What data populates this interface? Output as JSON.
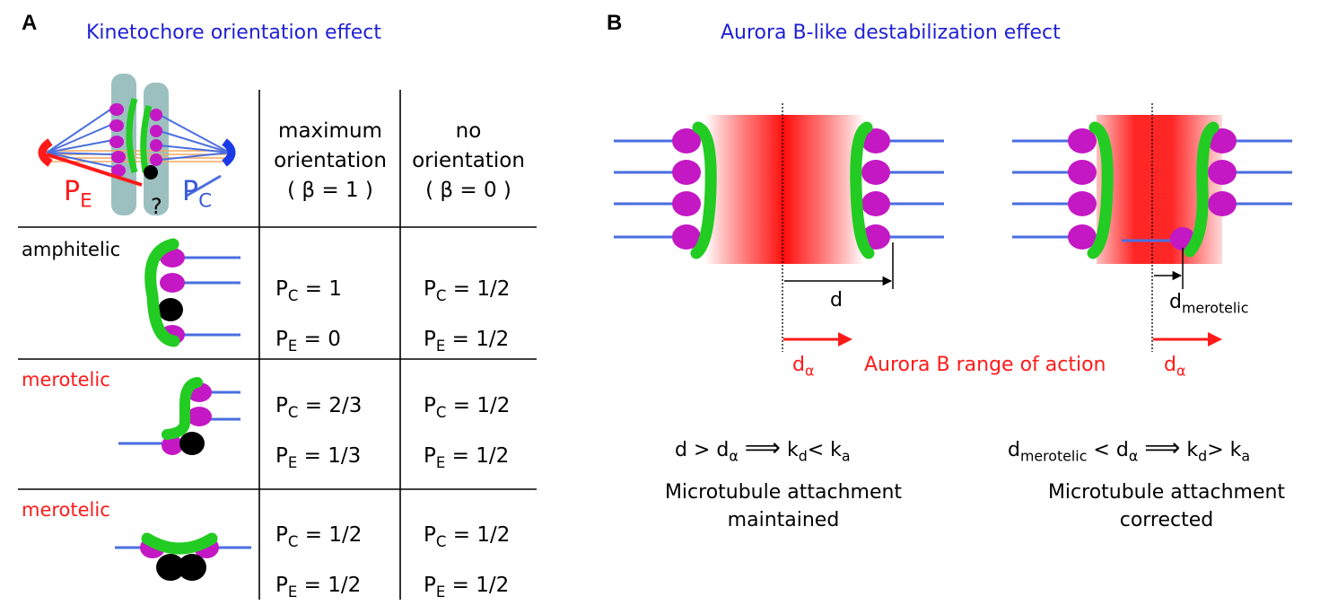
{
  "panel_a": {
    "label": "A",
    "title": "Kinetochore orientation effect",
    "spindle_labels": {
      "pe_main": "P",
      "pe_sub": "E",
      "pc_main": "P",
      "pc_sub": "C",
      "question": "?"
    },
    "headers": [
      {
        "line1": "maximum",
        "line2": "orientation",
        "line3": "( β = 1 )"
      },
      {
        "line1": "no",
        "line2": "orientation",
        "line3": "( β = 0 )"
      }
    ],
    "rows": [
      {
        "label": "amphitelic",
        "label_color": "#000000",
        "max": {
          "pc": "= 1",
          "pe": "= 0"
        },
        "none": {
          "pc": "= 1/2",
          "pe": "= 1/2"
        }
      },
      {
        "label": "merotelic",
        "label_color": "#ff1a1a",
        "max": {
          "pc": "= 2/3",
          "pe": "= 1/3"
        },
        "none": {
          "pc": "= 1/2",
          "pe": "= 1/2"
        }
      },
      {
        "label": "merotelic",
        "label_color": "#ff1a1a",
        "max": {
          "pc": "= 1/2",
          "pe": "= 1/2"
        },
        "none": {
          "pc": "= 1/2",
          "pe": "= 1/2"
        }
      }
    ],
    "p_letter": "P",
    "sub_c": "C",
    "sub_e": "E"
  },
  "panel_b": {
    "label": "B",
    "title": "Aurora B-like destabilization effect",
    "d_label": "d",
    "d_merotelic_main": "d",
    "d_merotelic_sub": "merotelic",
    "d_alpha_main": "d",
    "d_alpha_sub": "α",
    "range_text": "Aurora B range of action",
    "left_formula": {
      "lhs": "d > d",
      "alpha": "α",
      "arrow": "⟹",
      "k1": "k",
      "k1_sub": "d",
      "rel": "< k",
      "k2_sub": "a"
    },
    "right_formula": {
      "lhs": "d",
      "lhs_sub": "merotelic",
      "lt": " < d",
      "alpha": "α",
      "arrow": "⟹",
      "k1": "k",
      "k1_sub": "d",
      "rel": "> k",
      "k2_sub": "a"
    },
    "left_caption": {
      "line1": "Microtubule attachment",
      "line2": "maintained"
    },
    "right_caption": {
      "line1": "Microtubule attachment",
      "line2": "corrected"
    }
  },
  "colors": {
    "title_blue": "#1f1fd6",
    "red": "#ff1a1a",
    "microtubule": "#4a6ee0",
    "kinetochore_green": "#22cc22",
    "kinetochore_magenta": "#c418c4",
    "chromatid_teal": "#9cc0bf"
  }
}
